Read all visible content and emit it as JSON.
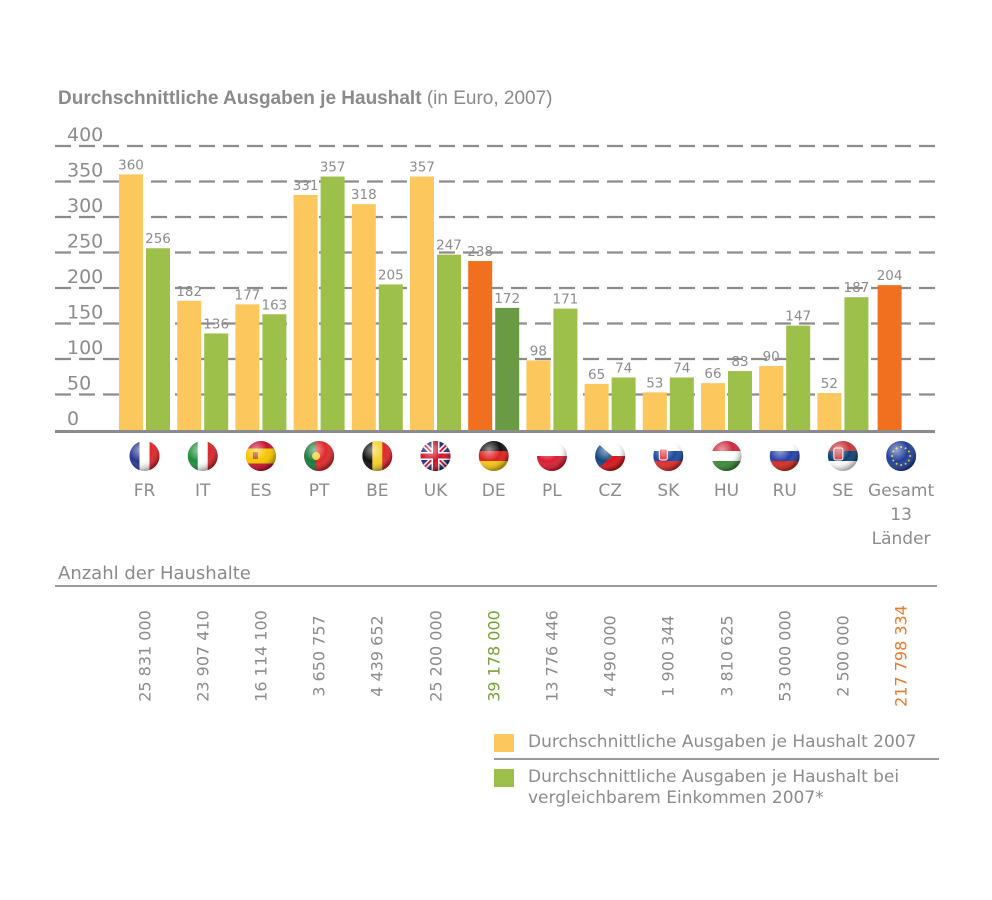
{
  "title": {
    "bold": "Durchschnittliche Ausgaben je Haushalt",
    "normal": " (in Euro, 2007)"
  },
  "colors": {
    "series1": "#fcc75c",
    "series2": "#9cc04a",
    "highlight_orange": "#f07020",
    "highlight_darkgreen": "#6a9a44",
    "grid": "#8c8c8c",
    "text": "#8c8c8c",
    "de_households": "#7aa03a",
    "total_households": "#e9792c"
  },
  "chart_data": {
    "type": "bar",
    "title": "Durchschnittliche Ausgaben je Haushalt (in Euro, 2007)",
    "xlabel": "",
    "ylabel": "",
    "ylim": [
      0,
      400
    ],
    "yticks": [
      0,
      50,
      100,
      150,
      200,
      250,
      300,
      350,
      400
    ],
    "grid": true,
    "categories": [
      "FR",
      "IT",
      "ES",
      "PT",
      "BE",
      "UK",
      "DE",
      "PL",
      "CZ",
      "SK",
      "HU",
      "RU",
      "SE",
      "Gesamt 13 Länder"
    ],
    "category_label_lines": [
      [
        "FR"
      ],
      [
        "IT"
      ],
      [
        "ES"
      ],
      [
        "PT"
      ],
      [
        "BE"
      ],
      [
        "UK"
      ],
      [
        "DE"
      ],
      [
        "PL"
      ],
      [
        "CZ"
      ],
      [
        "SK"
      ],
      [
        "HU"
      ],
      [
        "RU"
      ],
      [
        "SE"
      ],
      [
        "Gesamt",
        "13",
        "Länder"
      ]
    ],
    "series": [
      {
        "name": "Durchschnittliche Ausgaben je Haushalt 2007",
        "values": [
          360,
          182,
          177,
          331,
          318,
          357,
          238,
          98,
          65,
          53,
          66,
          90,
          52,
          204
        ]
      },
      {
        "name": "Durchschnittliche Ausgaben je Haushalt bei vergleichbarem Einkommen 2007*",
        "values": [
          256,
          136,
          163,
          357,
          205,
          247,
          172,
          171,
          74,
          74,
          83,
          147,
          187,
          null
        ]
      }
    ],
    "highlighted_categories": [
      "DE",
      "Gesamt 13 Länder"
    ],
    "legend_position": "bottom-right"
  },
  "flags": [
    {
      "country": "FR",
      "icon": "flag-france-icon"
    },
    {
      "country": "IT",
      "icon": "flag-italy-icon"
    },
    {
      "country": "ES",
      "icon": "flag-spain-icon"
    },
    {
      "country": "PT",
      "icon": "flag-portugal-icon"
    },
    {
      "country": "BE",
      "icon": "flag-belgium-icon"
    },
    {
      "country": "UK",
      "icon": "flag-uk-icon"
    },
    {
      "country": "DE",
      "icon": "flag-germany-icon"
    },
    {
      "country": "PL",
      "icon": "flag-poland-icon"
    },
    {
      "country": "CZ",
      "icon": "flag-czech-icon"
    },
    {
      "country": "SK",
      "icon": "flag-slovakia-icon"
    },
    {
      "country": "HU",
      "icon": "flag-hungary-icon"
    },
    {
      "country": "RU",
      "icon": "flag-russia-icon"
    },
    {
      "country": "SE",
      "icon": "flag-serbia-icon"
    },
    {
      "country": "Gesamt 13 Länder",
      "icon": "flag-eu-icon"
    }
  ],
  "households": {
    "title": "Anzahl der Haushalte",
    "values": [
      "25 831 000",
      "23 907 410",
      "16 114 100",
      "3 650 757",
      "4 439 652",
      "25 200 000",
      "39 178 000",
      "13 776 446",
      "4 490 000",
      "1 900 344",
      "3 810 625",
      "53 000 000",
      "2 500 000",
      "217 798 334"
    ]
  },
  "legend": {
    "items": [
      {
        "label_line1": "Durchschnittliche Ausgaben je Haushalt 2007",
        "label_line2": ""
      },
      {
        "label_line1": "Durchschnittliche Ausgaben je Haushalt bei",
        "label_line2": "vergleichbarem Einkommen 2007*"
      }
    ]
  }
}
